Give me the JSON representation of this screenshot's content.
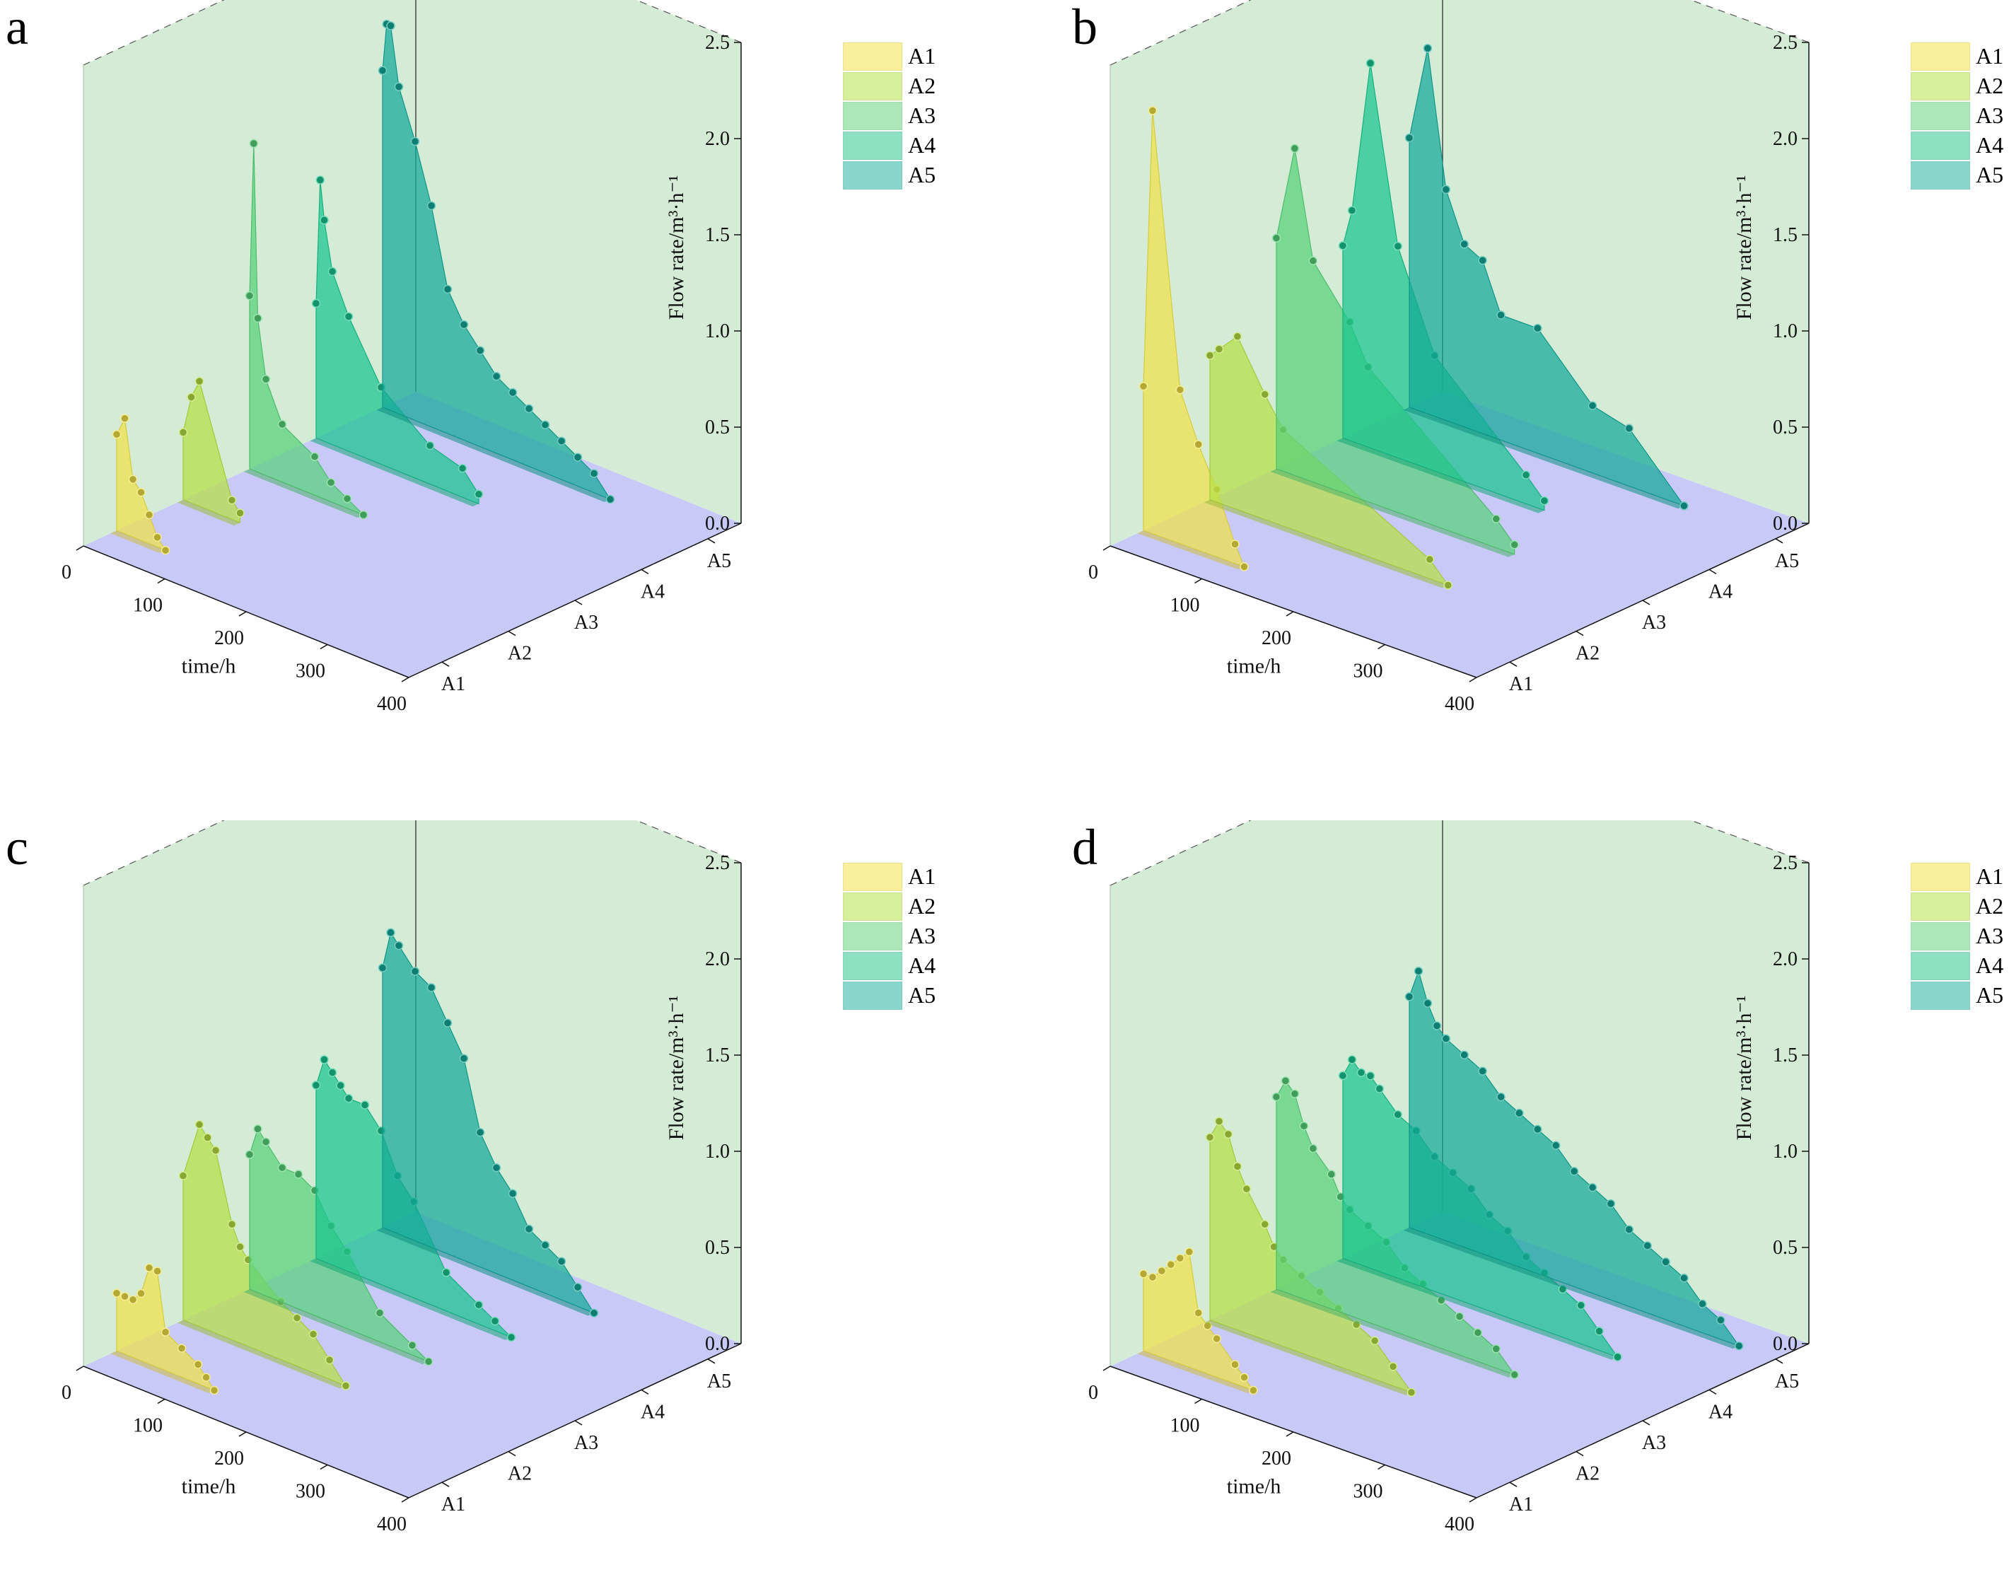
{
  "chart_data": [
    {
      "type": "3d-waterfall-area",
      "panel_label": "a",
      "ylabel": "Flow rate/m³·h⁻¹",
      "xlabel": "time/h",
      "ylim": [
        0,
        2.5
      ],
      "y_ticks": [
        "0.0",
        "0.5",
        "1.0",
        "1.5",
        "2.0",
        "2.5"
      ],
      "x_ticks": [
        "0",
        "100",
        "200",
        "300",
        "400"
      ],
      "z_ticks": [
        "A1",
        "A2",
        "A3",
        "A4",
        "A5"
      ],
      "legend": [
        "A1",
        "A2",
        "A3",
        "A4",
        "A5"
      ],
      "series": [
        {
          "name": "A1",
          "points": [
            [
              0,
              0.5
            ],
            [
              10,
              0.6
            ],
            [
              20,
              0.3
            ],
            [
              30,
              0.25
            ],
            [
              40,
              0.15
            ],
            [
              50,
              0.05
            ],
            [
              60,
              0.0
            ]
          ]
        },
        {
          "name": "A2",
          "points": [
            [
              0,
              0.35
            ],
            [
              10,
              0.55
            ],
            [
              20,
              0.65
            ],
            [
              60,
              0.1
            ],
            [
              70,
              0.05
            ]
          ]
        },
        {
          "name": "A3",
          "points": [
            [
              0,
              0.9
            ],
            [
              5,
              1.7
            ],
            [
              10,
              0.8
            ],
            [
              20,
              0.5
            ],
            [
              40,
              0.3
            ],
            [
              80,
              0.2
            ],
            [
              100,
              0.1
            ],
            [
              120,
              0.05
            ],
            [
              140,
              0.0
            ]
          ]
        },
        {
          "name": "A4",
          "points": [
            [
              0,
              0.7
            ],
            [
              5,
              1.35
            ],
            [
              10,
              1.15
            ],
            [
              20,
              0.9
            ],
            [
              40,
              0.7
            ],
            [
              80,
              0.4
            ],
            [
              140,
              0.2
            ],
            [
              180,
              0.15
            ],
            [
              200,
              0.05
            ]
          ]
        },
        {
          "name": "A5",
          "points": [
            [
              0,
              1.75
            ],
            [
              5,
              2.0
            ],
            [
              10,
              2.0
            ],
            [
              20,
              1.7
            ],
            [
              40,
              1.45
            ],
            [
              60,
              1.15
            ],
            [
              80,
              0.75
            ],
            [
              100,
              0.6
            ],
            [
              120,
              0.5
            ],
            [
              140,
              0.4
            ],
            [
              160,
              0.35
            ],
            [
              180,
              0.3
            ],
            [
              200,
              0.25
            ],
            [
              220,
              0.2
            ],
            [
              240,
              0.15
            ],
            [
              260,
              0.1
            ],
            [
              280,
              0.0
            ]
          ]
        }
      ]
    },
    {
      "type": "3d-waterfall-area",
      "panel_label": "b",
      "ylabel": "Flow rate/m³·h⁻¹",
      "xlabel": "time/h",
      "ylim": [
        0,
        2.5
      ],
      "y_ticks": [
        "0.0",
        "0.5",
        "1.0",
        "1.5",
        "2.0",
        "2.5"
      ],
      "x_ticks": [
        "0",
        "100",
        "200",
        "300",
        "400"
      ],
      "z_ticks": [
        "A1",
        "A2",
        "A3",
        "A4",
        "A5"
      ],
      "legend": [
        "A1",
        "A2",
        "A3",
        "A4",
        "A5"
      ],
      "series": [
        {
          "name": "A1",
          "points": [
            [
              0,
              0.75
            ],
            [
              10,
              2.2
            ],
            [
              40,
              0.8
            ],
            [
              60,
              0.55
            ],
            [
              80,
              0.35
            ],
            [
              100,
              0.1
            ],
            [
              110,
              0.0
            ]
          ]
        },
        {
          "name": "A2",
          "points": [
            [
              0,
              0.75
            ],
            [
              10,
              0.8
            ],
            [
              30,
              0.9
            ],
            [
              60,
              0.65
            ],
            [
              80,
              0.5
            ],
            [
              240,
              0.1
            ],
            [
              260,
              0.0
            ]
          ]
        },
        {
          "name": "A3",
          "points": [
            [
              0,
              1.2
            ],
            [
              20,
              1.7
            ],
            [
              40,
              1.15
            ],
            [
              80,
              0.9
            ],
            [
              100,
              0.7
            ],
            [
              240,
              0.15
            ],
            [
              260,
              0.05
            ]
          ]
        },
        {
          "name": "A4",
          "points": [
            [
              0,
              1.0
            ],
            [
              10,
              1.2
            ],
            [
              30,
              2.0
            ],
            [
              60,
              1.1
            ],
            [
              100,
              0.6
            ],
            [
              200,
              0.15
            ],
            [
              220,
              0.05
            ]
          ]
        },
        {
          "name": "A5",
          "points": [
            [
              0,
              1.4
            ],
            [
              20,
              1.9
            ],
            [
              40,
              1.2
            ],
            [
              60,
              0.95
            ],
            [
              80,
              0.9
            ],
            [
              100,
              0.65
            ],
            [
              140,
              0.65
            ],
            [
              200,
              0.35
            ],
            [
              240,
              0.3
            ],
            [
              300,
              0.0
            ]
          ]
        }
      ]
    },
    {
      "type": "3d-waterfall-area",
      "panel_label": "c",
      "ylabel": "Flow rate/m³·h⁻¹",
      "xlabel": "time/h",
      "ylim": [
        0,
        2.5
      ],
      "y_ticks": [
        "0.0",
        "0.5",
        "1.0",
        "1.5",
        "2.0",
        "2.5"
      ],
      "x_ticks": [
        "0",
        "100",
        "200",
        "300",
        "400"
      ],
      "z_ticks": [
        "A1",
        "A2",
        "A3",
        "A4",
        "A5"
      ],
      "legend": [
        "A1",
        "A2",
        "A3",
        "A4",
        "A5"
      ],
      "series": [
        {
          "name": "A1",
          "points": [
            [
              0,
              0.3
            ],
            [
              10,
              0.3
            ],
            [
              20,
              0.3
            ],
            [
              30,
              0.35
            ],
            [
              40,
              0.5
            ],
            [
              50,
              0.5
            ],
            [
              60,
              0.2
            ],
            [
              80,
              0.15
            ],
            [
              100,
              0.1
            ],
            [
              110,
              0.05
            ],
            [
              120,
              0.0
            ]
          ]
        },
        {
          "name": "A2",
          "points": [
            [
              0,
              0.75
            ],
            [
              20,
              1.05
            ],
            [
              30,
              1.0
            ],
            [
              40,
              0.95
            ],
            [
              60,
              0.6
            ],
            [
              70,
              0.5
            ],
            [
              80,
              0.45
            ],
            [
              120,
              0.3
            ],
            [
              140,
              0.25
            ],
            [
              160,
              0.2
            ],
            [
              180,
              0.1
            ],
            [
              200,
              0.0
            ]
          ]
        },
        {
          "name": "A3",
          "points": [
            [
              0,
              0.7
            ],
            [
              10,
              0.85
            ],
            [
              20,
              0.8
            ],
            [
              40,
              0.7
            ],
            [
              60,
              0.7
            ],
            [
              80,
              0.65
            ],
            [
              100,
              0.5
            ],
            [
              120,
              0.4
            ],
            [
              160,
              0.15
            ],
            [
              200,
              0.05
            ],
            [
              220,
              0.0
            ]
          ]
        },
        {
          "name": "A4",
          "points": [
            [
              0,
              0.9
            ],
            [
              10,
              1.05
            ],
            [
              20,
              1.0
            ],
            [
              30,
              0.95
            ],
            [
              40,
              0.9
            ],
            [
              60,
              0.9
            ],
            [
              80,
              0.8
            ],
            [
              100,
              0.6
            ],
            [
              120,
              0.5
            ],
            [
              160,
              0.2
            ],
            [
              200,
              0.1
            ],
            [
              220,
              0.05
            ],
            [
              240,
              0.0
            ]
          ]
        },
        {
          "name": "A5",
          "points": [
            [
              0,
              1.35
            ],
            [
              10,
              1.55
            ],
            [
              20,
              1.5
            ],
            [
              40,
              1.4
            ],
            [
              60,
              1.35
            ],
            [
              80,
              1.2
            ],
            [
              100,
              1.05
            ],
            [
              120,
              0.7
            ],
            [
              140,
              0.55
            ],
            [
              160,
              0.45
            ],
            [
              180,
              0.3
            ],
            [
              200,
              0.25
            ],
            [
              220,
              0.2
            ],
            [
              240,
              0.1
            ],
            [
              260,
              0.0
            ]
          ]
        }
      ]
    },
    {
      "type": "3d-waterfall-area",
      "panel_label": "d",
      "ylabel": "Flow rate/m³·h⁻¹",
      "xlabel": "time/h",
      "ylim": [
        0,
        2.5
      ],
      "y_ticks": [
        "0.0",
        "0.5",
        "1.0",
        "1.5",
        "2.0",
        "2.5"
      ],
      "x_ticks": [
        "0",
        "100",
        "200",
        "300",
        "400"
      ],
      "z_ticks": [
        "A1",
        "A2",
        "A3",
        "A4",
        "A5"
      ],
      "legend": [
        "A1",
        "A2",
        "A3",
        "A4",
        "A5"
      ],
      "series": [
        {
          "name": "A1",
          "points": [
            [
              0,
              0.4
            ],
            [
              10,
              0.4
            ],
            [
              20,
              0.45
            ],
            [
              30,
              0.5
            ],
            [
              40,
              0.55
            ],
            [
              50,
              0.6
            ],
            [
              60,
              0.3
            ],
            [
              70,
              0.25
            ],
            [
              80,
              0.2
            ],
            [
              100,
              0.1
            ],
            [
              110,
              0.05
            ],
            [
              120,
              0.0
            ]
          ]
        },
        {
          "name": "A2",
          "points": [
            [
              0,
              0.95
            ],
            [
              10,
              1.05
            ],
            [
              20,
              1.0
            ],
            [
              30,
              0.85
            ],
            [
              40,
              0.75
            ],
            [
              60,
              0.6
            ],
            [
              70,
              0.5
            ],
            [
              80,
              0.45
            ],
            [
              100,
              0.4
            ],
            [
              120,
              0.35
            ],
            [
              140,
              0.3
            ],
            [
              160,
              0.25
            ],
            [
              180,
              0.2
            ],
            [
              200,
              0.1
            ],
            [
              220,
              0.0
            ]
          ]
        },
        {
          "name": "A3",
          "points": [
            [
              0,
              1.0
            ],
            [
              10,
              1.1
            ],
            [
              20,
              1.05
            ],
            [
              30,
              0.9
            ],
            [
              40,
              0.8
            ],
            [
              60,
              0.7
            ],
            [
              70,
              0.6
            ],
            [
              80,
              0.55
            ],
            [
              100,
              0.5
            ],
            [
              120,
              0.45
            ],
            [
              140,
              0.35
            ],
            [
              160,
              0.3
            ],
            [
              180,
              0.25
            ],
            [
              200,
              0.2
            ],
            [
              220,
              0.15
            ],
            [
              240,
              0.1
            ],
            [
              260,
              0.0
            ]
          ]
        },
        {
          "name": "A4",
          "points": [
            [
              0,
              0.95
            ],
            [
              10,
              1.05
            ],
            [
              20,
              1.0
            ],
            [
              30,
              1.0
            ],
            [
              40,
              0.95
            ],
            [
              60,
              0.85
            ],
            [
              80,
              0.8
            ],
            [
              100,
              0.7
            ],
            [
              120,
              0.65
            ],
            [
              140,
              0.6
            ],
            [
              160,
              0.5
            ],
            [
              180,
              0.45
            ],
            [
              200,
              0.35
            ],
            [
              220,
              0.3
            ],
            [
              240,
              0.25
            ],
            [
              260,
              0.2
            ],
            [
              280,
              0.1
            ],
            [
              300,
              0.0
            ]
          ]
        },
        {
          "name": "A5",
          "points": [
            [
              0,
              1.2
            ],
            [
              10,
              1.35
            ],
            [
              20,
              1.2
            ],
            [
              30,
              1.1
            ],
            [
              40,
              1.05
            ],
            [
              60,
              1.0
            ],
            [
              80,
              0.95
            ],
            [
              100,
              0.85
            ],
            [
              120,
              0.8
            ],
            [
              140,
              0.75
            ],
            [
              160,
              0.7
            ],
            [
              180,
              0.6
            ],
            [
              200,
              0.55
            ],
            [
              220,
              0.5
            ],
            [
              240,
              0.4
            ],
            [
              260,
              0.35
            ],
            [
              280,
              0.3
            ],
            [
              300,
              0.25
            ],
            [
              320,
              0.15
            ],
            [
              340,
              0.1
            ],
            [
              360,
              0.0
            ]
          ]
        }
      ]
    }
  ],
  "style": {
    "series_colors": [
      "#f0e046",
      "#b5df43",
      "#56d178",
      "#18c48e",
      "#12a898"
    ],
    "legend_colors": [
      "#f7ef9a",
      "#d7ee9b",
      "#abe8b7",
      "#8ee0c3",
      "#89d6cb"
    ],
    "back_wall_color": "#d4ecd6",
    "floor_color": "#c9c9f8"
  }
}
